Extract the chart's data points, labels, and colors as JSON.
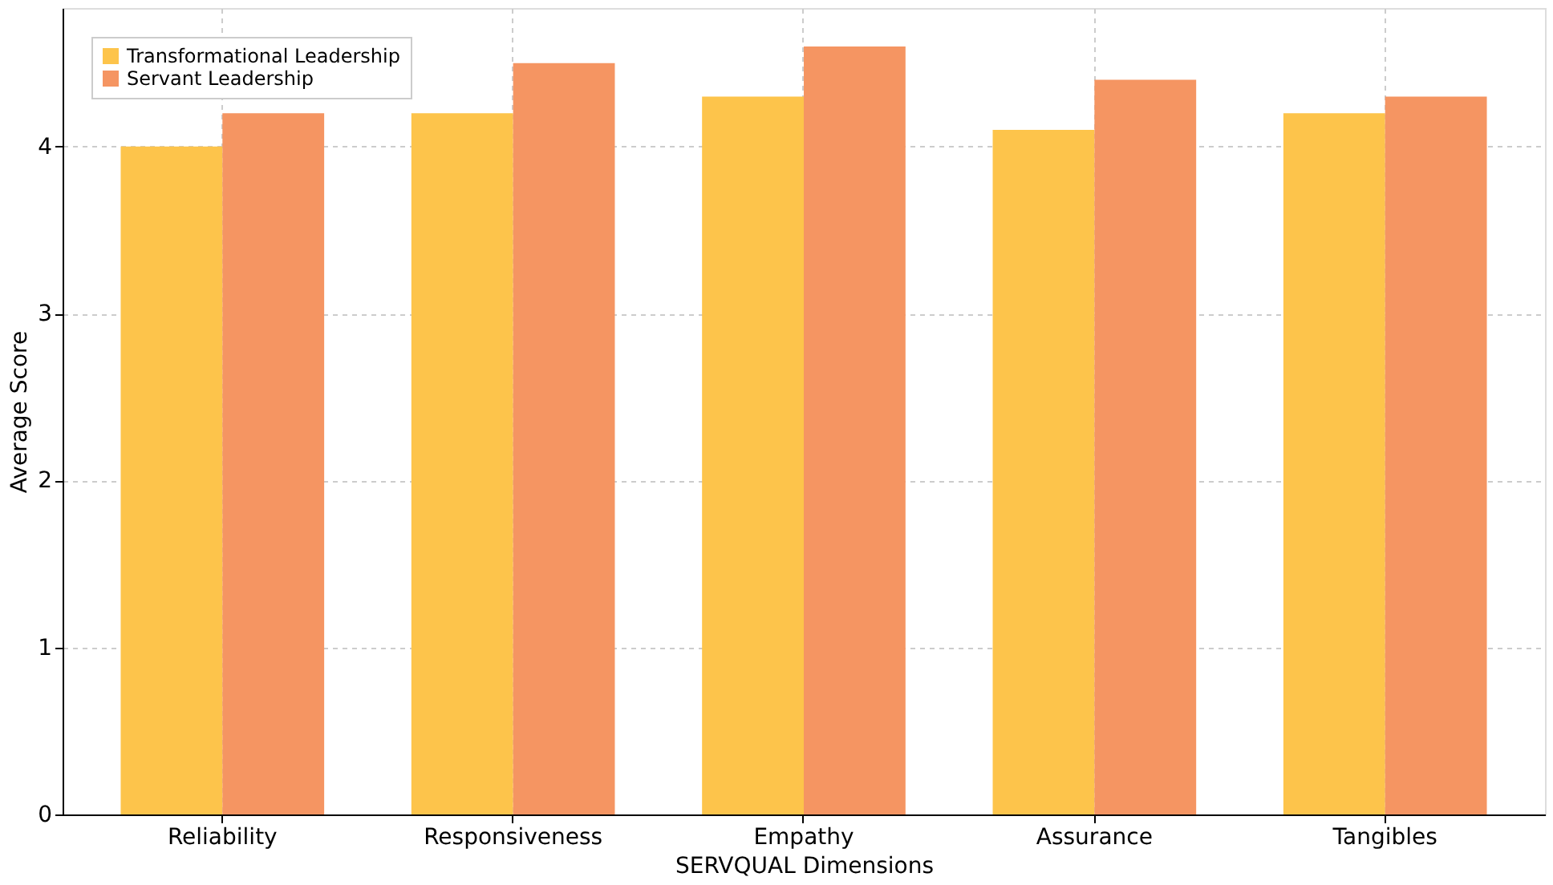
{
  "chart_data": {
    "type": "bar",
    "xlabel": "SERVQUAL Dimensions",
    "ylabel": "Average Score",
    "categories": [
      "Reliability",
      "Responsiveness",
      "Empathy",
      "Assurance",
      "Tangibles"
    ],
    "series": [
      {
        "name": "Transformational Leadership",
        "color": "#fdc44b",
        "values": [
          4.0,
          4.2,
          4.3,
          4.1,
          4.2
        ]
      },
      {
        "name": "Servant Leadership",
        "color": "#f59562",
        "values": [
          4.2,
          4.5,
          4.6,
          4.4,
          4.3
        ]
      }
    ],
    "ylim": [
      0,
      4.83
    ],
    "yticks": [
      0,
      1,
      2,
      3,
      4
    ],
    "grid": true,
    "legend": "top left"
  }
}
